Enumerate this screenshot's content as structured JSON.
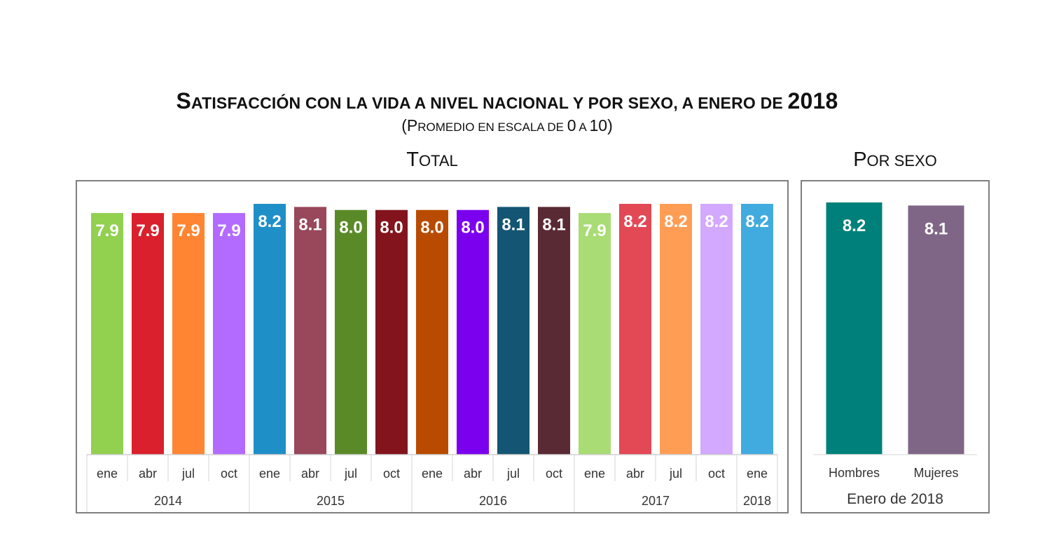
{
  "title": {
    "cap1": "S",
    "rest1": "ATISFACCIÓN CON LA VIDA A NIVEL NACIONAL Y POR SEXO, A ENERO DE ",
    "year": "2018"
  },
  "subtitle": {
    "open": "(P",
    "rest": "ROMEDIO EN ESCALA DE ",
    "num1": "0",
    "mid": " A ",
    "num2": "10",
    "close": ")"
  },
  "panel_total_title": {
    "cap": "T",
    "rest": "OTAL"
  },
  "panel_sex_title": {
    "cap": "P",
    "rest": "OR SEXO"
  },
  "chart_data": [
    {
      "type": "bar",
      "title": "",
      "ylim": [
        0,
        8.6
      ],
      "categories": [
        "ene",
        "abr",
        "jul",
        "oct",
        "ene",
        "abr",
        "jul",
        "oct",
        "ene",
        "abr",
        "jul",
        "oct",
        "ene",
        "abr",
        "jul",
        "oct",
        "ene"
      ],
      "values": [
        7.9,
        7.9,
        7.9,
        7.9,
        8.2,
        8.1,
        8.0,
        8.0,
        8.0,
        8.0,
        8.1,
        8.1,
        7.9,
        8.2,
        8.2,
        8.2,
        8.2
      ],
      "labels": [
        "7.9",
        "7.9",
        "7.9",
        "7.9",
        "8.2",
        "8.1",
        "8.0",
        "8.0",
        "8.0",
        "8.0",
        "8.1",
        "8.1",
        "7.9",
        "8.2",
        "8.2",
        "8.2",
        "8.2"
      ],
      "colors": [
        "#92d050",
        "#d9202c",
        "#ff8533",
        "#b36bff",
        "#1f8fc8",
        "#99475a",
        "#5a8a28",
        "#83141d",
        "#b84b00",
        "#7b00ee",
        "#145573",
        "#5a2a34",
        "#a9dc74",
        "#e34855",
        "#ff9d55",
        "#d3a9ff",
        "#41abe0"
      ],
      "groups": [
        {
          "label": "2014",
          "start": 0,
          "count": 4
        },
        {
          "label": "2015",
          "start": 4,
          "count": 4
        },
        {
          "label": "2016",
          "start": 8,
          "count": 4
        },
        {
          "label": "2017",
          "start": 12,
          "count": 4
        },
        {
          "label": "2018",
          "start": 16,
          "count": 1
        }
      ]
    },
    {
      "type": "bar",
      "title": "",
      "ylim": [
        0,
        8.6
      ],
      "categories": [
        "Hombres",
        "Mujeres"
      ],
      "values": [
        8.2,
        8.1
      ],
      "labels": [
        "8.2",
        "8.1"
      ],
      "colors": [
        "#00807a",
        "#806686"
      ],
      "xlabel": "Enero de 2018"
    }
  ]
}
